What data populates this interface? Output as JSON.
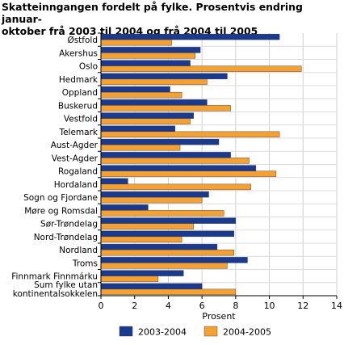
{
  "chart_data": {
    "type": "bar",
    "orientation": "horizontal",
    "title": "Skatteinngangen fordelt på fylke. Prosentvis endring januar-oktober frå 2003 til 2004 og frå 2004 til 2005",
    "title_lines": [
      "Skatteinngangen fordelt på fylke. Prosentvis endring januar-",
      "oktober frå 2003 til 2004 og frå 2004 til 2005"
    ],
    "xlabel": "Prosent",
    "ylabel": "",
    "xlim": [
      0,
      14
    ],
    "xticks": [
      0,
      2,
      4,
      6,
      8,
      10,
      12,
      14
    ],
    "grid": "vertical",
    "legend_position": "bottom",
    "categories": [
      "Østfold",
      "Akershus",
      "Oslo",
      "Hedmark",
      "Oppland",
      "Buskerud",
      "Vestfold",
      "Telemark",
      "Aust-Agder",
      "Vest-Agder",
      "Rogaland",
      "Hordaland",
      "Sogn og Fjordane",
      "Møre og Romsdal",
      "Sør-Trøndelag",
      "Nord-Trøndelag",
      "Nordland",
      "Troms",
      "Finnmark Finnmárku",
      [
        "Sum fylke utan",
        "kontinentalsokkelen"
      ]
    ],
    "series": [
      {
        "name": "2003-2004",
        "color": "#1a3a8f",
        "values": [
          10.6,
          5.9,
          5.3,
          7.5,
          4.1,
          6.3,
          5.5,
          4.4,
          7.0,
          7.7,
          9.2,
          1.6,
          6.4,
          2.8,
          8.0,
          7.9,
          6.9,
          8.7,
          4.9,
          6.0
        ]
      },
      {
        "name": "2004-2005",
        "color": "#f5a033",
        "values": [
          4.2,
          5.6,
          11.9,
          6.3,
          4.8,
          7.7,
          5.3,
          10.6,
          4.7,
          8.8,
          10.4,
          8.9,
          6.0,
          7.3,
          5.5,
          4.8,
          7.9,
          7.5,
          3.4,
          8.0
        ]
      }
    ]
  }
}
